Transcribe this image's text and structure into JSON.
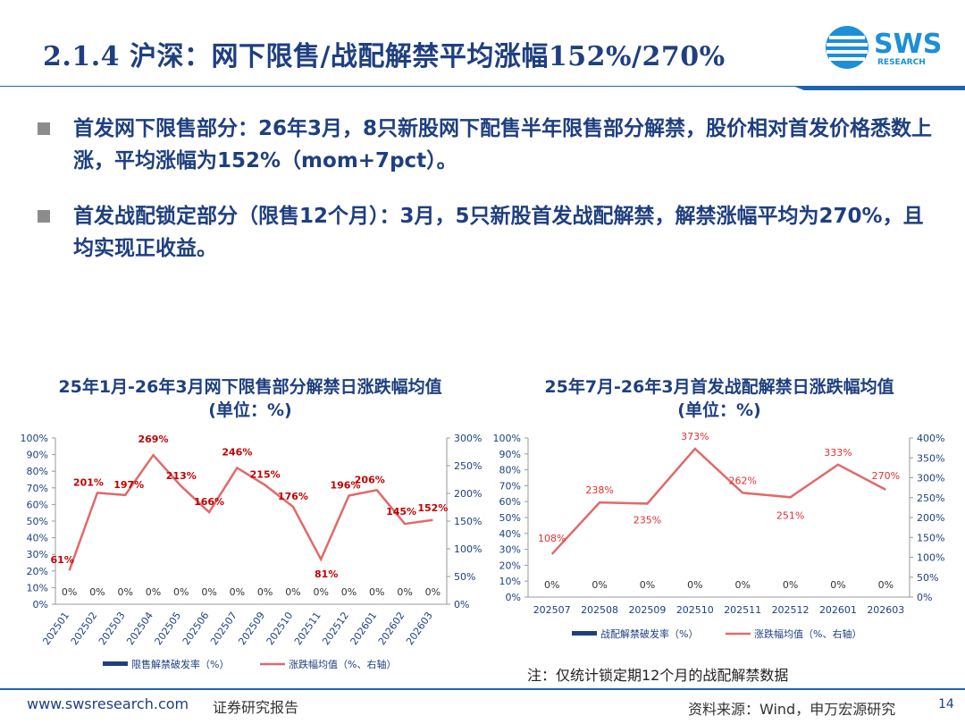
{
  "header": {
    "title": "2.1.4 沪深：网下限售/战配解禁平均涨幅152%/270%",
    "logo_text": "SWS",
    "logo_sub": "RESEARCH"
  },
  "bullets": [
    "首发网下限售部分：26年3月，8只新股网下配售半年限售部分解禁，股价相对首发价格悉数上涨，平均涨幅为152%（mom+7pct）。",
    "首发战配锁定部分（限售12个月）：3月，5只新股首发战配解禁，解禁涨幅平均为270%，且均实现正收益。"
  ],
  "colors": {
    "bar": "#1f3f7f",
    "line": "#e06a6a",
    "label_left": "#c00000",
    "label_right": "#e03030",
    "axis": "#1f3f7f",
    "title": "#1f3f7f"
  },
  "chart_data": [
    {
      "type": "bar+line",
      "title": "25年1月-26年3月网下限售部分解禁日涨跌幅均值",
      "subtitle": "(单位：%)",
      "categories": [
        "202501",
        "202502",
        "202503",
        "202504",
        "202505",
        "202506",
        "202507",
        "202509",
        "202510",
        "202511",
        "202512",
        "202601",
        "202602",
        "202603"
      ],
      "series": [
        {
          "name": "限售解禁破发率（%）",
          "axis": "left",
          "kind": "bar",
          "values": [
            0,
            0,
            0,
            0,
            0,
            0,
            0,
            0,
            0,
            0,
            0,
            0,
            0,
            0
          ],
          "labels": [
            "0%",
            "0%",
            "0%",
            "0%",
            "0%",
            "0%",
            "0%",
            "0%",
            "0%",
            "0%",
            "0%",
            "0%",
            "0%",
            "0%"
          ]
        },
        {
          "name": "涨跌幅均值（%、右轴）",
          "axis": "right",
          "kind": "line",
          "values": [
            61,
            201,
            197,
            269,
            213,
            166,
            246,
            215,
            176,
            81,
            196,
            206,
            145,
            152
          ],
          "labels": [
            "61%",
            "201%",
            "197%",
            "269%",
            "213%",
            "166%",
            "246%",
            "215%",
            "176%",
            "81%",
            "196%",
            "206%",
            "145%",
            "152%"
          ]
        }
      ],
      "y_left": {
        "min": 0,
        "max": 100,
        "step": 10,
        "ticks": [
          "0%",
          "10%",
          "20%",
          "30%",
          "40%",
          "50%",
          "60%",
          "70%",
          "80%",
          "90%",
          "100%"
        ]
      },
      "y_right": {
        "min": 0,
        "max": 300,
        "step": 50,
        "ticks": [
          "0%",
          "50%",
          "100%",
          "150%",
          "200%",
          "250%",
          "300%"
        ]
      },
      "legend": "bottom"
    },
    {
      "type": "bar+line",
      "title": "25年7月-26年3月首发战配解禁日涨跌幅均值",
      "subtitle": "(单位：%)",
      "categories": [
        "202507",
        "202508",
        "202509",
        "202510",
        "202511",
        "202512",
        "202601",
        "202603"
      ],
      "series": [
        {
          "name": "战配解禁破发率（%）",
          "axis": "left",
          "kind": "bar",
          "values": [
            0,
            0,
            0,
            0,
            0,
            0,
            0,
            0
          ],
          "labels": [
            "0%",
            "0%",
            "0%",
            "0%",
            "0%",
            "0%",
            "0%",
            "0%"
          ]
        },
        {
          "name": "涨跌幅均值（%、右轴）",
          "axis": "right",
          "kind": "line",
          "values": [
            108,
            238,
            235,
            373,
            262,
            251,
            333,
            270
          ],
          "labels": [
            "108%",
            "238%",
            "235%",
            "373%",
            "262%",
            "251%",
            "333%",
            "270%"
          ]
        }
      ],
      "y_left": {
        "min": 0,
        "max": 100,
        "step": 10,
        "ticks": [
          "0%",
          "10%",
          "20%",
          "30%",
          "40%",
          "50%",
          "60%",
          "70%",
          "80%",
          "90%",
          "100%"
        ]
      },
      "y_right": {
        "min": 0,
        "max": 400,
        "step": 50,
        "ticks": [
          "0%",
          "50%",
          "100%",
          "150%",
          "200%",
          "250%",
          "300%",
          "350%",
          "400%"
        ]
      },
      "legend": "bottom"
    }
  ],
  "note": "注：仅统计锁定期12个月的战配解禁数据",
  "footer": {
    "url": "www.swsresearch.com",
    "doc_type": "证券研究报告",
    "source": "资料来源：Wind，申万宏源研究",
    "page": "14"
  }
}
